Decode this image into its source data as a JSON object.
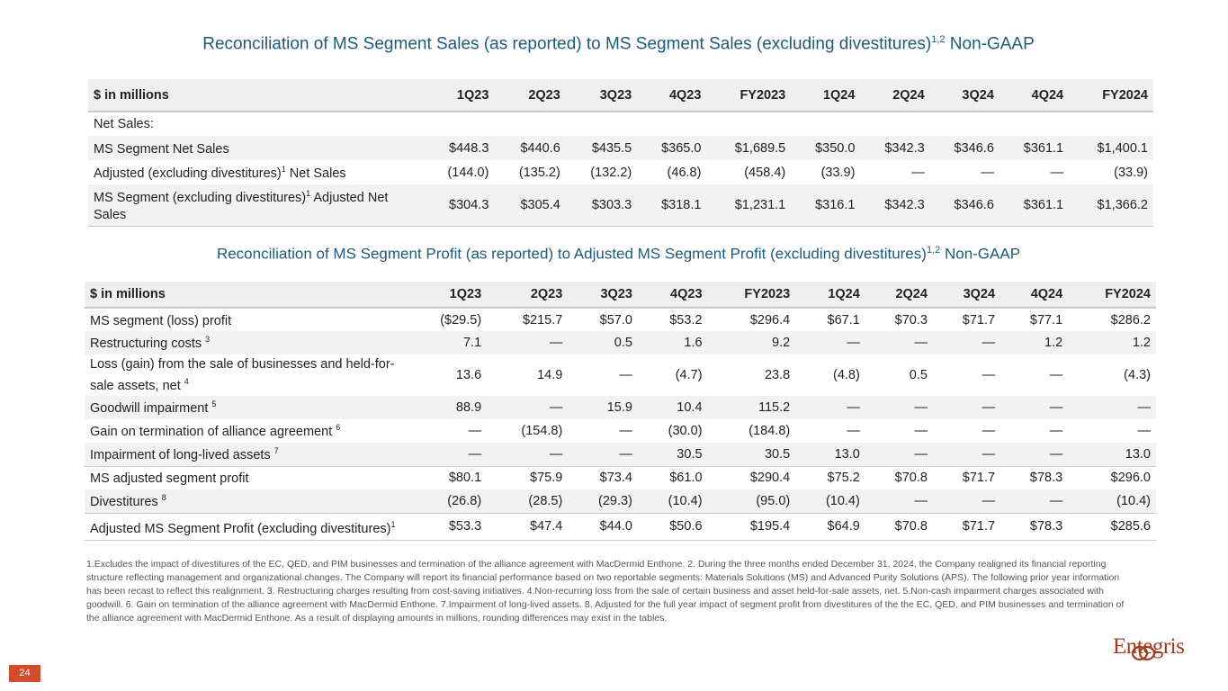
{
  "title1": {
    "text": "Reconciliation of MS Segment Sales (as reported) to MS Segment Sales (excluding divestitures)",
    "sup": "1,2",
    "suffix": " Non-GAAP"
  },
  "title2": {
    "text": "Reconciliation of MS Segment Profit (as reported) to Adjusted MS Segment Profit (excluding divestitures)",
    "sup": "1,2",
    "suffix": " Non-GAAP"
  },
  "table1": {
    "header": [
      "$ in millions",
      "1Q23",
      "2Q23",
      "3Q23",
      "4Q23",
      "FY2023",
      "1Q24",
      "2Q24",
      "3Q24",
      "4Q24",
      "FY2024"
    ],
    "section_label": "Net Sales:",
    "rows": [
      {
        "label": "MS Segment Net Sales",
        "sup": "",
        "label2": "",
        "values": [
          "$448.3",
          "$440.6",
          "$435.5",
          "$365.0",
          "$1,689.5",
          "$350.0",
          "$342.3",
          "$346.6",
          "$361.1",
          "$1,400.1"
        ]
      },
      {
        "label": "Adjusted (excluding divestitures)",
        "sup": "1",
        "label2": " Net Sales",
        "values": [
          "(144.0)",
          "(135.2)",
          "(132.2)",
          "(46.8)",
          "(458.4)",
          "(33.9)",
          "—",
          "—",
          "—",
          "(33.9)"
        ]
      },
      {
        "label": "MS Segment (excluding divestitures)",
        "sup": "1",
        "label2": " Adjusted Net Sales",
        "values": [
          "$304.3",
          "$305.4",
          "$303.3",
          "$318.1",
          "$1,231.1",
          "$316.1",
          "$342.3",
          "$346.6",
          "$361.1",
          "$1,366.2"
        ]
      }
    ]
  },
  "table2": {
    "header": [
      "$ in millions",
      "1Q23",
      "2Q23",
      "3Q23",
      "4Q23",
      "FY2023",
      "1Q24",
      "2Q24",
      "3Q24",
      "4Q24",
      "FY2024"
    ],
    "rows": [
      {
        "label": "MS segment (loss) profit",
        "sup": "",
        "values": [
          "($29.5)",
          "$215.7",
          "$57.0",
          "$53.2",
          "$296.4",
          "$67.1",
          "$70.3",
          "$71.7",
          "$77.1",
          "$286.2"
        ]
      },
      {
        "label": "Restructuring costs ",
        "sup": "3",
        "values": [
          "7.1",
          "—",
          "0.5",
          "1.6",
          "9.2",
          "—",
          "—",
          "—",
          "1.2",
          "1.2"
        ]
      },
      {
        "label": "Loss (gain) from the sale of businesses and held-for-sale assets, net ",
        "sup": "4",
        "values": [
          "13.6",
          "14.9",
          "—",
          "(4.7)",
          "23.8",
          "(4.8)",
          "0.5",
          "—",
          "—",
          "(4.3)"
        ]
      },
      {
        "label": "Goodwill impairment ",
        "sup": "5",
        "values": [
          "88.9",
          "—",
          "15.9",
          "10.4",
          "115.2",
          "—",
          "—",
          "—",
          "—",
          "—"
        ]
      },
      {
        "label": "Gain on termination of alliance agreement ",
        "sup": "6",
        "values": [
          "—",
          "(154.8)",
          "—",
          "(30.0)",
          "(184.8)",
          "—",
          "—",
          "—",
          "—",
          "—"
        ]
      },
      {
        "label": "Impairment of long-lived assets ",
        "sup": "7",
        "values": [
          "—",
          "—",
          "—",
          "30.5",
          "30.5",
          "13.0",
          "—",
          "—",
          "—",
          "13.0"
        ]
      },
      {
        "label": "MS adjusted segment profit",
        "sup": "",
        "values": [
          "$80.1",
          "$75.9",
          "$73.4",
          "$61.0",
          "$290.4",
          "$75.2",
          "$70.8",
          "$71.7",
          "$78.3",
          "$296.0"
        ]
      },
      {
        "label": "Divestitures ",
        "sup": "8",
        "values": [
          "(26.8)",
          "(28.5)",
          "(29.3)",
          "(10.4)",
          "(95.0)",
          "(10.4)",
          "—",
          "—",
          "—",
          "(10.4)"
        ]
      },
      {
        "label": "Adjusted MS Segment Profit (excluding divestitures)",
        "sup": "1",
        "values": [
          "$53.3",
          "$47.4",
          "$44.0",
          "$50.6",
          "$195.4",
          "$64.9",
          "$70.8",
          "$71.7",
          "$78.3",
          "$285.6"
        ]
      }
    ]
  },
  "footnotes": "1.Excludes the impact of divestitures of the EC, QED, and PIM businesses and termination of the alliance agreement with MacDermid Enthone. 2. During the three months ended December 31, 2024, the Company realigned its financial reporting structure reflecting management and organizational changes.  The Company will report its financial performance based on two reportable segments: Materials Solutions (MS) and Advanced Purity Solutions (APS). The following prior year information has been recast to reflect this realignment.  3. Restructuring charges resulting from cost-saving initiatives.  4.Non-recurring loss from the sale of certain business and asset held-for-sale assets, net.  5.Non-cash impairment charges associated with goodwill.  6. Gain on termination of the alliance agreement with MacDermid Enthone.  7.Impairment of long-lived assets. 8. Adjusted for the full year impact of segment profit from divestitures of the the EC, QED, and PIM businesses and termination of the alliance agreement with MacDermid Enthone.  As a result of displaying amounts in millions, rounding differences may exist in the tables.",
  "page_number": "24",
  "logo_text": "Entegris",
  "colors": {
    "title": "#1f5a7a",
    "accent": "#d24b2a",
    "logo": "#a23a1f"
  }
}
